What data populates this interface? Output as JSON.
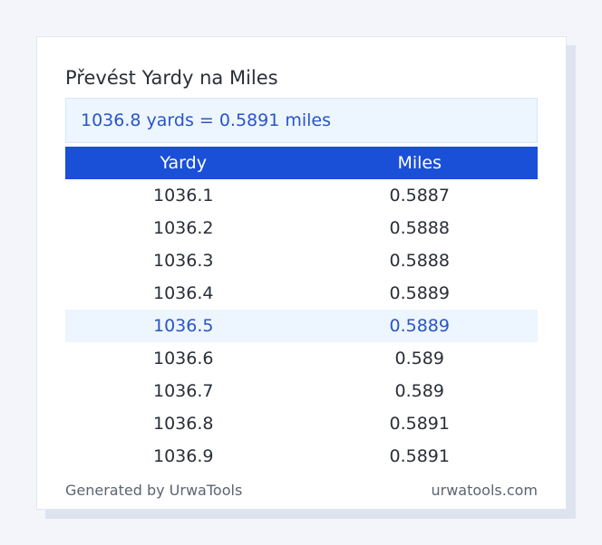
{
  "title": "Převést Yardy na Miles",
  "result": "1036.8 yards = 0.5891 miles",
  "table": {
    "headers": [
      "Yardy",
      "Miles"
    ],
    "rows": [
      {
        "yards": "1036.1",
        "miles": "0.5887",
        "highlight": false
      },
      {
        "yards": "1036.2",
        "miles": "0.5888",
        "highlight": false
      },
      {
        "yards": "1036.3",
        "miles": "0.5888",
        "highlight": false
      },
      {
        "yards": "1036.4",
        "miles": "0.5889",
        "highlight": false
      },
      {
        "yards": "1036.5",
        "miles": "0.5889",
        "highlight": true
      },
      {
        "yards": "1036.6",
        "miles": "0.589",
        "highlight": false
      },
      {
        "yards": "1036.7",
        "miles": "0.589",
        "highlight": false
      },
      {
        "yards": "1036.8",
        "miles": "0.5891",
        "highlight": false
      },
      {
        "yards": "1036.9",
        "miles": "0.5891",
        "highlight": false
      }
    ]
  },
  "footer": {
    "generated_by": "Generated by UrwaTools",
    "site": "urwatools.com"
  },
  "colors": {
    "accent": "#1a4fd8",
    "highlight_bg": "#edf5fe",
    "highlight_text": "#2a55c4"
  }
}
